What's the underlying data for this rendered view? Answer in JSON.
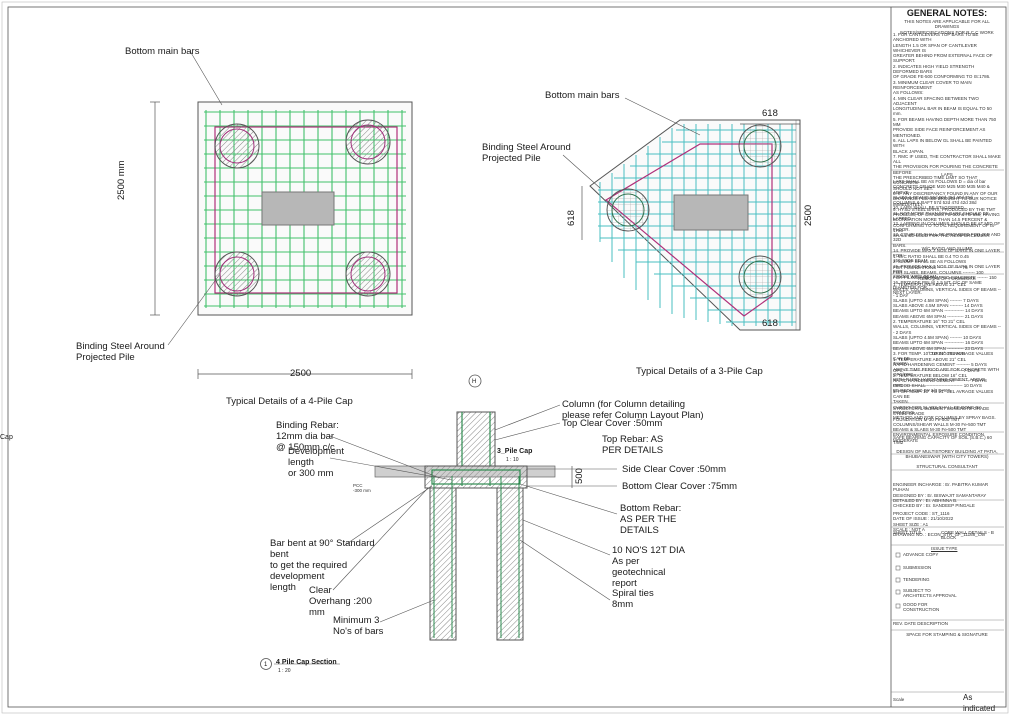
{
  "drawing": {
    "four_pile": {
      "title": "Typical Details of a 4-Pile Cap",
      "bottom_bars": "Bottom main bars",
      "binding": "Binding Steel Around\nProjected Pile",
      "dim_h": "2500",
      "dim_v": "2500 mm"
    },
    "three_pile": {
      "title": "Typical Details of a 3-Pile Cap",
      "bottom_bars": "Bottom main bars",
      "binding": "Binding Steel Around\nProjected Pile",
      "dim_top": "618",
      "dim_bottom": "618",
      "dim_left": "618",
      "dim_right": "2500"
    },
    "section": {
      "marker": "H",
      "cap_label": "3_Pile Cap",
      "cap_scale": "1 : 10",
      "column": "Column (for Column detailing\nplease refer Column Layout Plan)",
      "top_cover": "Top Clear Cover :50mm",
      "top_rebar": "Top Rebar: AS\nPER DETAILS",
      "side_cover": "Side Clear Cover :50mm",
      "bottom_cover": "Bottom Clear Cover :75mm",
      "depth": "500",
      "pcc": "PCC\n-300 mm",
      "binding_rebar": "Binding Rebar:\n12mm dia bar\n@ 150mm c/c",
      "development": "Development\nlength\nor 300 mm",
      "bottom_rebar": "Bottom Rebar:\nAS PER THE\nDETAILS",
      "bent": "Bar bent at 90° Standard\nbent\nto get the required\ndevelopment\nlength",
      "overhang": "Clear\nOverhang :200\nmm",
      "minimum": "Minimum 3\nNo's of bars",
      "pile_bars": "10 NO'S 12T  DIA\nAs per\ngeotechnical\nreport",
      "spiral": "Spiral ties\n8mm",
      "title_num": "1",
      "title": "4 Pile Cap Section",
      "title_scale": "1 : 20"
    },
    "left_edge": "Cap"
  },
  "notes": {
    "heading": "GENERAL NOTES:",
    "intro": "THIS NOTES ARE APPLICABLE FOR ALL DRAWINGS\nNOTES/SPECIFICATIONS FOR R.C.C WORK",
    "body": "1. FOR CANTILEVERS TOP BARS TO BE ANCHORED WITH\nLENGTH 1.5 OR SPAN OF CANTILEVER WHICHEVER IS\nGREATER BEHIND FROM EXTERNAL FACE OF\nSUPPORT.\n2. INDICATES HIGH YIELD STRENGTH DEFORMED BARS\nOF GRADE FE-500 CONFORMING TO IS:1786.\n3. MINIMUM CLEAR COVER TO MAIN REINFORCEMENT\nAS FOLLOWS:\n4. MIN CLEAR SPACING BETWEEN TWO ADJACENT\nLONGITUDINAL BAR IN BEAM IS EQUAL TO 50 mm.\n5. FOR BEAMS HAVING DEPTH MORE THAN 750 MM\nPROVIDE SIDE FACE REINFORCEMENT AS MENTIONED.\n6. ALL LAPS IN BELOW GL SHALL BE PAINTED WITH\nBLACK JAPAN.\n7. RMC IF USED, THE CONTRACTOR SHALL MAKE ALL\nTHE PROVISION FOR POURING THE CONCRETE BEFORE\nTHE PRESCRIBED TIME LIMIT SO THAT CONCRETE\nSHOULD NOT SET.\n8. IF ANY DISCREPANCY FOUND IN ANY OF OUR\nDRAWINGS PLEASE BROUGHT TO OUR NOTICE\nIMMEDIATELY.\n9. HYSD STEEL BARS, PRODUCED BY THE TMT\nPROCESS, OF GRADES FE-500 & FE-550, HAVING\nELONGATION MORE THAN 14.5 PERCENT &\nCONFORMING TO TOTAL REQUIREMENT OF IS-1786\nSHALL BE USED FOR THE REINFORCEMENT.",
    "laps_head": "LAPS",
    "laps_table": "LAPS SHALL BE AS FOLLOWS             D = dia of bar\nCONCRETE GRADE   M20   M25   M30   M35   M40 & ABOVE\nSLABS & BEAMS     55d    50d    45d    40d    35d\nCOLUMNS & RAFT   57d    52d    47d    42d    38d\n10. LAPS SHALL BE STAGGERED.\n11. NOT MORE THAN 50% BARS SHOULD BE LAPPED.\n12. LAPPING IN COLUMNS SHOULD BE AT MID OF FLOOR.\n13. COUPLER SHALL BE PROVIDED FOR 25D AND 32D\nBARS.\n14. PROVIDE MAX 2 NOS OF BARS IN ONE LAYER FOR\n150 WIDE BEAM.\n15. PROVIDE MAX 3 NOS OF BARS IN ONE LAYER FOR\n230/300 WIDE BEAM.\n16. PROVIDE PIN @ 1.5 MT. C/C OF SAME DIAMETER FOR\nNEXT LAYER.",
    "wc_head": "W/C RATIO AND SLUMP",
    "wc": "1. W/C RATIO SHALL BE 0.4 TO 0.45\n2. SLUMP SHALL BE AS FOLLOWS\n   FOR FOUNDATIONS ---------------- 75\n   FOR SLABS, BEAMS, COLUMNS -------- 100\n   FOR PILING AND PUMPED CONCRETE ------- 150",
    "removal_head": "REMOVAL OF FORMWORK",
    "removal": "1. TEMPERATURE ABOVE 21° CEL\n   WALLS, COLUMNS, VERTICAL SIDES OF BEAMS --- 1 DAY\n   SLABS (UPTO 4.5M SPAN) -------- 7 DAYS\n   SLABS ABOVE 4.5M SPAN --------- 14 DAYS\n   BEAMS UPTO 6M SPAN ------------- 14 DAYS\n   BEAMS ABOVE 6M SPAN ----------- 21 DAYS\n2. TEMPERATURE 16° TO 21° CEL\n   WALLS, COLUMNS, VERTICAL SIDES OF BEAMS --- 2 DAYS\n   SLABS (UPTO 4.5M SPAN) -------- 10 DAYS\n   BEAMS UPTO 6M SPAN ------------- 16 DAYS\n   BEAMS ABOVE 6M SPAN ----------- 23 DAYS\n3. FOR TEMP. 10° TO 21° CEL AVRAGE VALUES CAN BE\n   TAKEN.\nABOVE TIME PERIOD ARE FOR CONCRETE WITH OPC/PPC,\nWITH RAPID HARDENING CEMENT, ABOVE PERIOD SHALL\nBE REDUCED BY 2/3 DAYS.",
    "curing_head": "CURING PERIOD",
    "curing": "1. TEMPERATURE ABOVE 21° CEL\n   RAPID HARDENING CEMENT --------- 5 DAYS\n   OPC --------------------------------------- 7 DAYS\n2. TEMPERATURE BELOW 16° CEL\n   RAPID HARDENING CEMENT --------- 7 DAYS\n   OPC --------------------------------------- 10 DAYS\n3. FOR TEMP. 10° TO 21° CEL AVRAGE VALUES CAN BE\n   TAKEN.\n   CURING FOR SLABS SHALL BE DONE BY PONDING\n   METHOD AND FOR COLUMNS BY SPRAY BAGS.",
    "grade_table": "STRUCTURAL ELEMENT  CONCRETE GRADE  STEEL GRADE\nFOUNDATION                         M-30         Fe-500 TMT\nCOLUMNS/SHEAR WALLS         M-30         Fe-500 TMT\nBEAMS & SLABS                      M-30         Fe-500 TMT\nENVIRONMENTAL EXPOSURE CONDITION       MODERATE",
    "sbc": "SAFE BEARING CAPACITY OF SOIL (S.B.C.)      60 T/M2",
    "project": "DESIGN OF MULTISTOREY BUILDING AT PATIA,\nBHUBANESWAR (WITH CITY TOWERS)",
    "consultant": "STRUCTURAL CONSULTANT",
    "people": "ENGINEER INCHARGE   : Er. PABITRA KUMAR PUHAN\nDESIGNED BY             : Er. BISWAJIT SAMANTARAY\nDETAILED BY              : Er. ABHINNA B.\nCHECKED BY              : Er. SANDEEP PINGALE",
    "codes": "PROJECT CODE        : ST_1116\nDATE OF ISSUE       : 21/10/2022\nSHEET SIZE            : A1\nSCALE                   : NOT A\nDRAWING NO.          : ECON_STR_GF_11168_CW",
    "sheet_title_label": "SHEET TITLE",
    "sheet_title": "CORE WALL DETAILS - B\nBLOCK",
    "issue_head": "ISSUE TYPE",
    "issues": [
      "ADVANCE COPY",
      "SUBMISSION",
      "TENDERING",
      "SUBJECT TO\nARCHITECTS APPROVAL",
      "GOOD FOR\nCONSTRUCTION"
    ],
    "rev": "REV.   DATE   DESCRIPTION",
    "stamp": "SPACE FOR STAMPING & SIGNATURE",
    "scale_label": "Scale",
    "scale_value": "As indicated"
  }
}
